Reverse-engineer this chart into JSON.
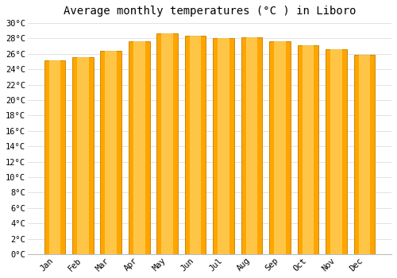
{
  "title": "Average monthly temperatures (°C ) in Liboro",
  "months": [
    "Jan",
    "Feb",
    "Mar",
    "Apr",
    "May",
    "Jun",
    "Jul",
    "Aug",
    "Sep",
    "Oct",
    "Nov",
    "Dec"
  ],
  "values": [
    25.2,
    25.6,
    26.4,
    27.6,
    28.7,
    28.4,
    28.0,
    28.1,
    27.6,
    27.1,
    26.6,
    25.9
  ],
  "bar_color_light": "#FFD060",
  "bar_color_main": "#FFA500",
  "bar_color_edge": "#CC8800",
  "background_color": "#FFFFFF",
  "plot_background": "#FFFFFF",
  "grid_color": "#DDDDDD",
  "ylim": [
    0,
    30
  ],
  "ytick_step": 2,
  "title_fontsize": 10,
  "tick_fontsize": 7.5,
  "bar_width": 0.75
}
